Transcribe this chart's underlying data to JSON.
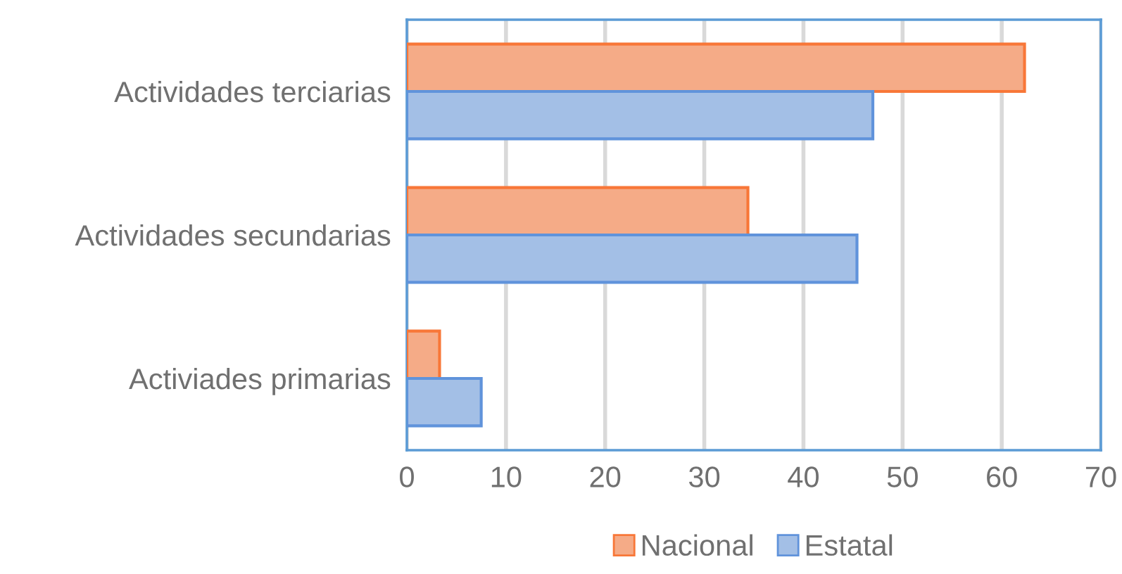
{
  "chart_data": {
    "type": "bar",
    "orientation": "horizontal",
    "categories": [
      "Actividades terciarias",
      "Actividades secundarias",
      "Activiades primarias"
    ],
    "series": [
      {
        "name": "Nacional",
        "color": "#f5ab87",
        "values": [
          62.3,
          34.4,
          3.3
        ]
      },
      {
        "name": "Estatal",
        "color": "#a3bfe6",
        "values": [
          47.0,
          45.4,
          7.5
        ]
      }
    ],
    "xlim": [
      0,
      70
    ],
    "xticks": [
      0,
      10,
      20,
      30,
      40,
      50,
      60,
      70
    ],
    "grid": "x",
    "legend": "bottom"
  }
}
